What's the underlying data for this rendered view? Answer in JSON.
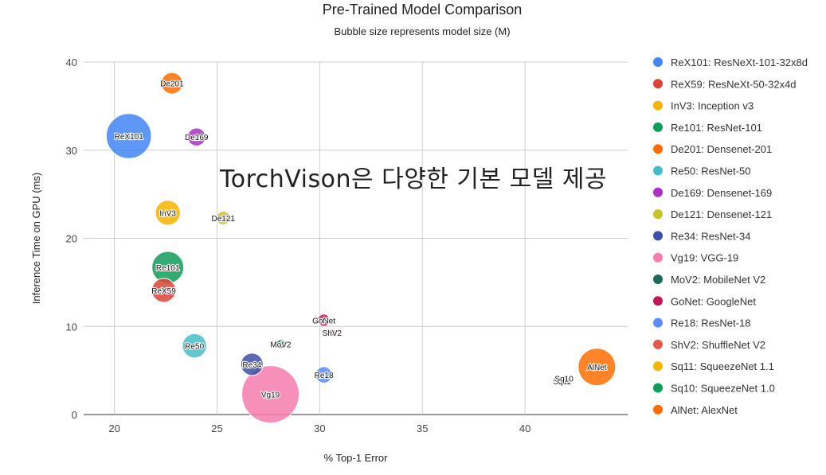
{
  "chart_data": {
    "type": "scatter",
    "subtype": "bubble",
    "title": "Pre-Trained Model Comparison",
    "subtitle": "Bubble size represents model size (M)",
    "xlabel": "% Top-1 Error",
    "ylabel": "Inference Time on GPU (ms)",
    "xlim": [
      18.5,
      45
    ],
    "ylim": [
      0,
      40
    ],
    "xticks": [
      20,
      25,
      30,
      35,
      40
    ],
    "yticks": [
      0,
      10,
      20,
      30,
      40
    ],
    "grid": true,
    "legend_position": "right",
    "series": [
      {
        "name": "ReX101: ResNeXt-101-32x8d",
        "label": "ReX101",
        "color": "#4285f4",
        "x": 20.7,
        "y": 31.6,
        "size": 88.8
      },
      {
        "name": "ReX59: ResNeXt-50-32x4d",
        "label": "ReX59",
        "color": "#db4437",
        "x": 22.4,
        "y": 14.1,
        "size": 25.0
      },
      {
        "name": "InV3: Inception v3",
        "label": "InV3",
        "color": "#f4b400",
        "x": 22.6,
        "y": 22.9,
        "size": 27.2
      },
      {
        "name": "Re101: ResNet-101",
        "label": "Re101",
        "color": "#0f9d58",
        "x": 22.6,
        "y": 16.7,
        "size": 44.5
      },
      {
        "name": "De201: Densenet-201",
        "label": "De201",
        "color": "#ff6d01",
        "x": 22.8,
        "y": 37.6,
        "size": 20.0
      },
      {
        "name": "Re50: ResNet-50",
        "label": "Re50",
        "color": "#46bdc6",
        "x": 23.9,
        "y": 7.8,
        "size": 25.6
      },
      {
        "name": "De169: Densenet-169",
        "label": "De169",
        "color": "#ab30c4",
        "x": 24.0,
        "y": 31.5,
        "size": 14.1
      },
      {
        "name": "De121: Densenet-121",
        "label": "De121",
        "color": "#c9c12b",
        "x": 25.3,
        "y": 22.3,
        "size": 8.0
      },
      {
        "name": "Re34: ResNet-34",
        "label": "Re34",
        "color": "#3e4ea7",
        "x": 26.7,
        "y": 5.7,
        "size": 21.8
      },
      {
        "name": "Vg19: VGG-19",
        "label": "Vg19",
        "color": "#f57cae",
        "x": 27.6,
        "y": 2.3,
        "size": 143.7
      },
      {
        "name": "MoV2: MobileNet V2",
        "label": "MoV2",
        "color": "#1a6b5c",
        "x": 28.1,
        "y": 8.0,
        "size": 3.5
      },
      {
        "name": "GoNet: GoogleNet",
        "label": "GoNet",
        "color": "#c2185b",
        "x": 30.2,
        "y": 10.7,
        "size": 6.6
      },
      {
        "name": "Re18: ResNet-18",
        "label": "Re18",
        "color": "#5b8df2",
        "x": 30.2,
        "y": 4.5,
        "size": 11.7
      },
      {
        "name": "ShV2: ShuffleNet V2",
        "label": "ShV2",
        "color": "#e25a4c",
        "x": 30.6,
        "y": 9.3,
        "size": 2.3
      },
      {
        "name": "Sq11: SqueezeNet 1.1",
        "label": "Sq11",
        "color": "#f4b400",
        "x": 41.8,
        "y": 3.8,
        "size": 1.2
      },
      {
        "name": "Sq10: SqueezeNet 1.0",
        "label": "Sq10",
        "color": "#0f9d58",
        "x": 41.9,
        "y": 4.1,
        "size": 1.2
      },
      {
        "name": "AlNet: AlexNet",
        "label": "AlNet",
        "color": "#ff6d01",
        "x": 43.5,
        "y": 5.4,
        "size": 61.1
      }
    ]
  },
  "overlay_text": "TorchVison은 다양한 기본 모델 제공"
}
